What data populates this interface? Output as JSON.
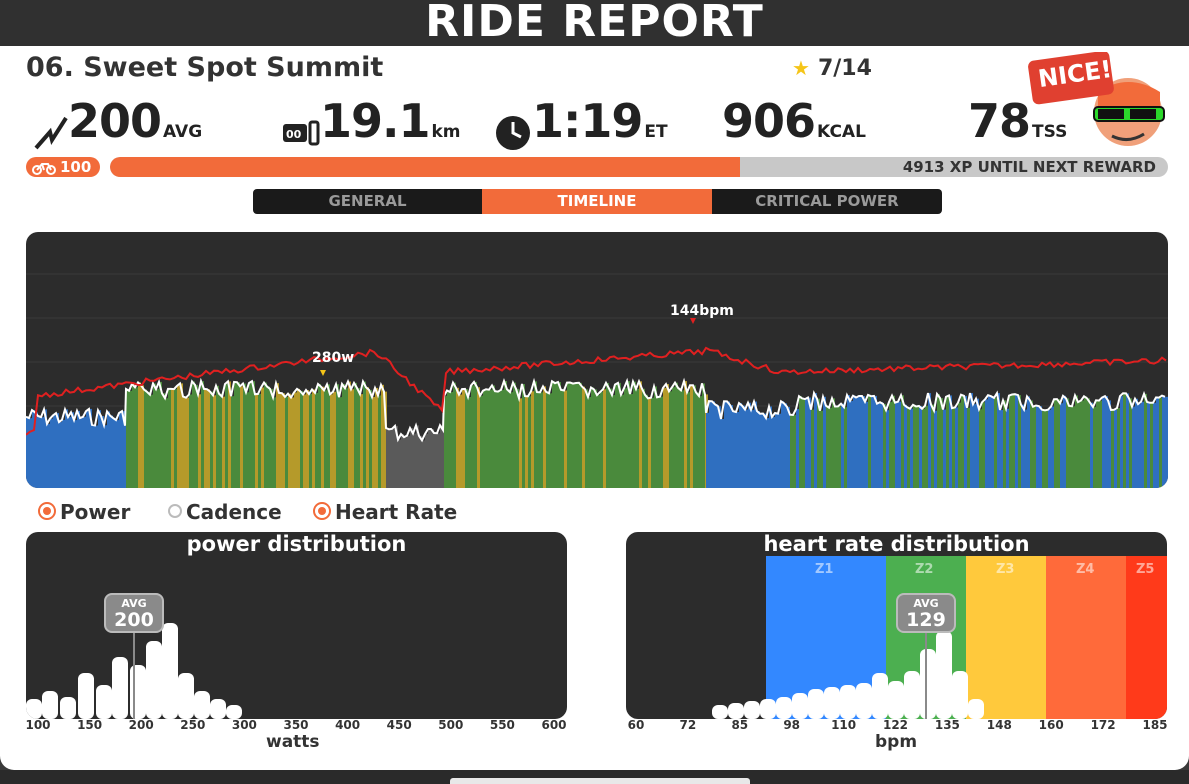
{
  "header": {
    "title": "RIDE REPORT"
  },
  "workout": {
    "name": "06. Sweet Spot Summit",
    "stars": "7/14"
  },
  "badge": {
    "text": "NICE!"
  },
  "stats": {
    "power": {
      "value": "200",
      "unit": "AVG"
    },
    "distance": {
      "value": "19.1",
      "unit": "km"
    },
    "time": {
      "value": "1:19",
      "unit": "ET"
    },
    "calories": {
      "value": "906",
      "unit": "KCAL"
    },
    "tss": {
      "value": "78",
      "unit": "TSS"
    }
  },
  "progress": {
    "level": "100",
    "xp_fill": 0.595,
    "xp_text": "4913 XP UNTIL NEXT REWARD"
  },
  "tabs": [
    {
      "label": "GENERAL",
      "active": false
    },
    {
      "label": "TIMELINE",
      "active": true
    },
    {
      "label": "CRITICAL POWER",
      "active": false
    }
  ],
  "timeline": {
    "power_peak": "280w",
    "hr_peak": "144bpm"
  },
  "legend": {
    "power": "Power",
    "cadence": "Cadence",
    "heart_rate": "Heart Rate"
  },
  "power_dist": {
    "title": "power distribution",
    "xlabel": "watts",
    "avg_label": "AVG",
    "avg_value": "200",
    "ticks": [
      "100",
      "150",
      "200",
      "250",
      "300",
      "350",
      "400",
      "450",
      "500",
      "550",
      "600"
    ]
  },
  "hr_dist": {
    "title": "heart rate distribution",
    "xlabel": "bpm",
    "avg_label": "AVG",
    "avg_value": "129",
    "ticks": [
      "60",
      "72",
      "85",
      "98",
      "110",
      "122",
      "135",
      "148",
      "160",
      "172",
      "185"
    ],
    "zones": [
      "Z1",
      "Z2",
      "Z3",
      "Z4",
      "Z5"
    ]
  },
  "colors": {
    "accent": "#f26b3a",
    "z1": "#3388ff",
    "z2": "#4caf50",
    "z3": "#ffc93c",
    "z4": "#ff6a3a",
    "z5": "#ff3a1a"
  }
}
